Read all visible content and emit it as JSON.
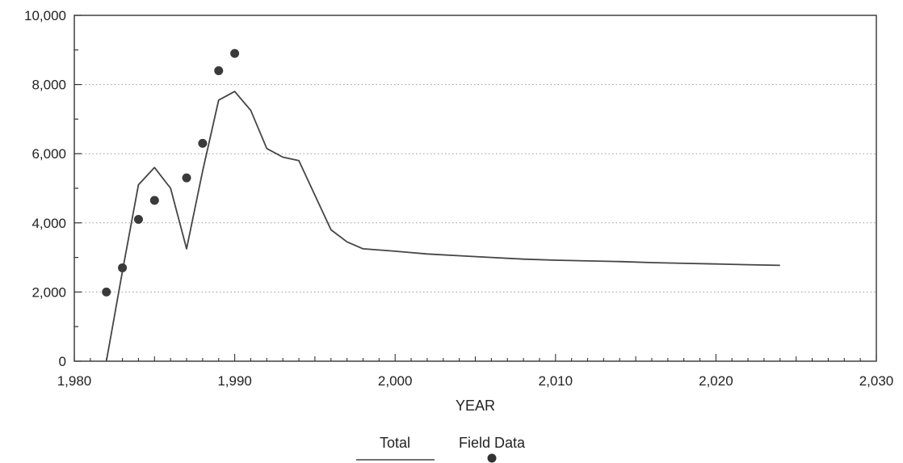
{
  "chart_data": {
    "type": "line",
    "title": "",
    "xlabel": "YEAR",
    "ylabel": "",
    "xlim": [
      1980,
      2030
    ],
    "ylim": [
      0,
      10000
    ],
    "x_ticks": [
      "1,980",
      "1,990",
      "2,000",
      "2,010",
      "2,020",
      "2,030"
    ],
    "x_tick_values": [
      1980,
      1990,
      2000,
      2010,
      2020,
      2030
    ],
    "y_ticks": [
      "0",
      "2,000",
      "4,000",
      "6,000",
      "8,000",
      "10,000"
    ],
    "y_tick_values": [
      0,
      2000,
      4000,
      6000,
      8000,
      10000
    ],
    "grid": "horizontal dotted",
    "legend_position": "bottom-center",
    "series": [
      {
        "name": "Total",
        "kind": "line",
        "x": [
          1982,
          1983,
          1984,
          1985,
          1986,
          1987,
          1988,
          1989,
          1990,
          1991,
          1992,
          1993,
          1994,
          1995,
          1996,
          1997,
          1998,
          2000,
          2002,
          2004,
          2006,
          2008,
          2010,
          2012,
          2014,
          2016,
          2018,
          2020,
          2022,
          2024
        ],
        "y": [
          0,
          2600,
          5100,
          5600,
          5000,
          3250,
          5500,
          7550,
          7800,
          7250,
          6150,
          5900,
          5800,
          4800,
          3800,
          3450,
          3250,
          3180,
          3100,
          3050,
          3000,
          2950,
          2920,
          2900,
          2880,
          2850,
          2830,
          2810,
          2790,
          2770
        ]
      },
      {
        "name": "Field Data",
        "kind": "scatter",
        "x": [
          1982,
          1983,
          1984,
          1985,
          1987,
          1988,
          1989,
          1990
        ],
        "y": [
          2000,
          2700,
          4100,
          4650,
          5300,
          6300,
          8400,
          8900
        ]
      }
    ]
  }
}
